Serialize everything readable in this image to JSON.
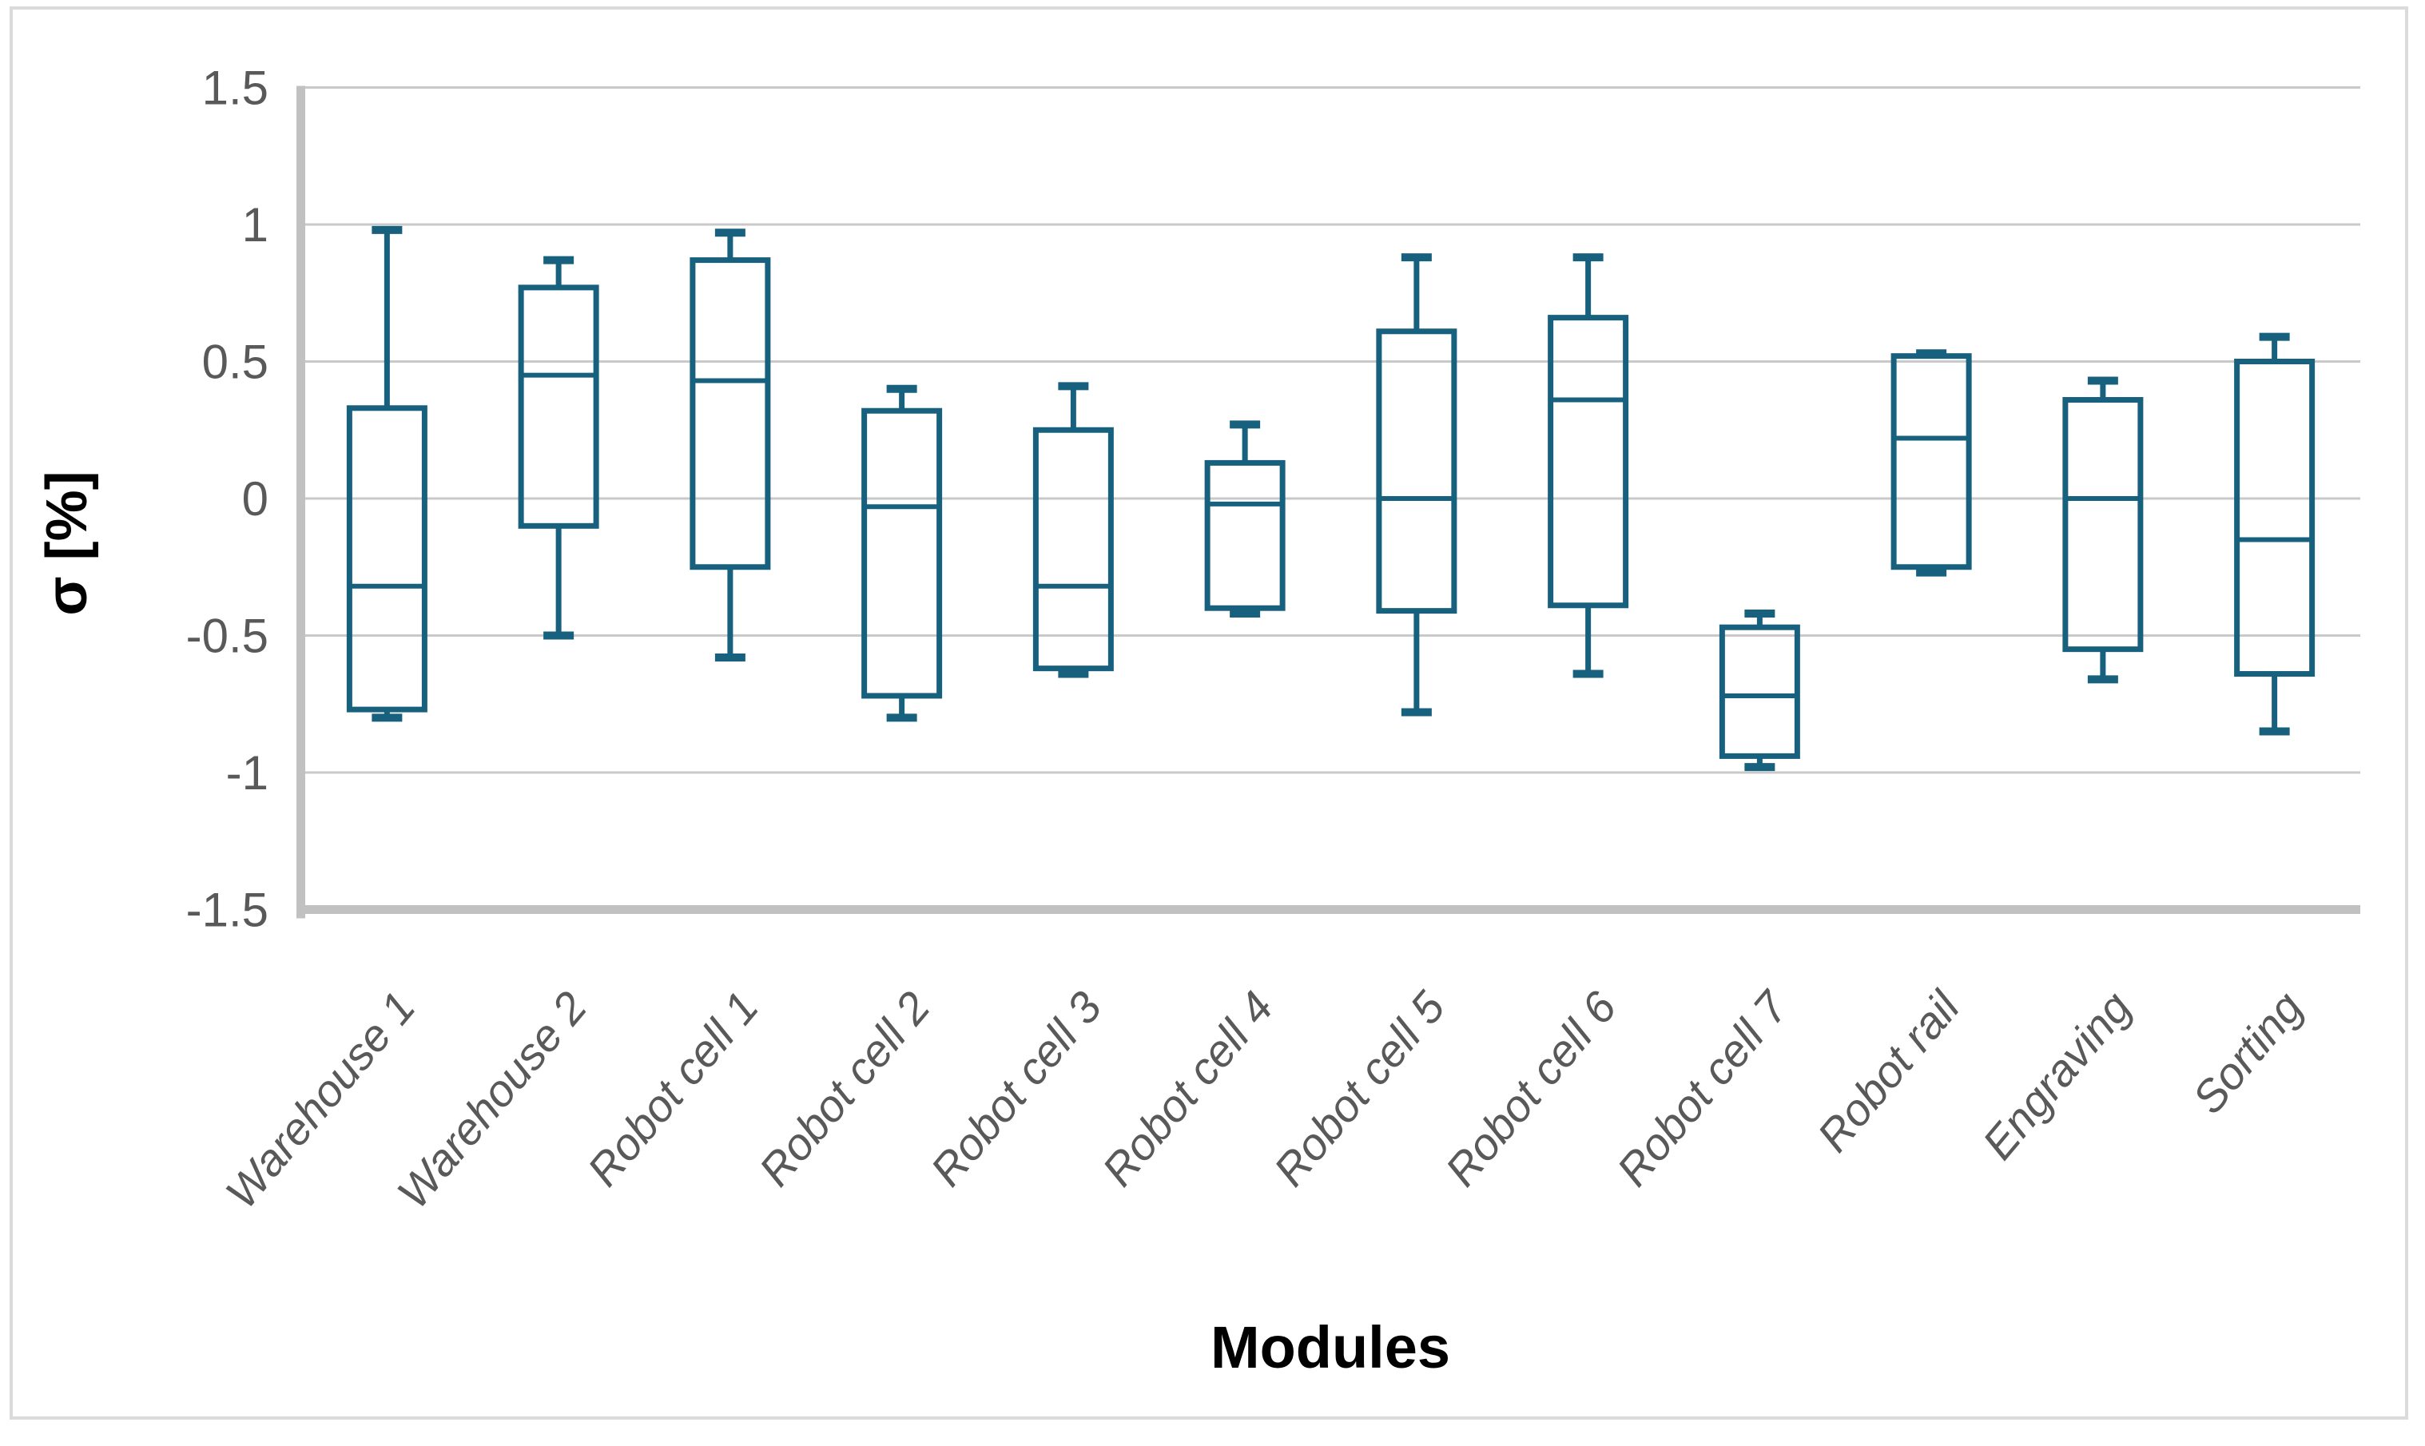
{
  "figure": {
    "background": "#ffffff"
  },
  "colors": {
    "box_stroke": "#17607E",
    "gridline": "#C9C9C9",
    "axis_band": "#C1C1C1",
    "tick_label": "#595959",
    "category_label": "#595959",
    "axis_title": "#000000",
    "figure_border": "#DBDBDB"
  },
  "chart_data": {
    "type": "boxplot",
    "title": "",
    "xlabel": "Modules",
    "ylabel": "σ [%]",
    "ylim": [
      -1.5,
      1.5
    ],
    "grid": true,
    "legend": false,
    "ytick_labels": [
      "1.5",
      "1",
      "0.5",
      "0",
      "-0.5",
      "-1",
      "-1.5"
    ],
    "ytick_values": [
      1.5,
      1,
      0.5,
      0,
      -0.5,
      -1,
      -1.5
    ],
    "categories": [
      "Warehouse 1",
      "Warehouse 2",
      "Robot cell 1",
      "Robot cell 2",
      "Robot cell 3",
      "Robot cell 4",
      "Robot cell 5",
      "Robot cell 6",
      "Robot cell 7",
      "Robot rail",
      "Engraving",
      "Sorting"
    ],
    "series": [
      {
        "name": "Warehouse 1",
        "whisker_low": -0.8,
        "q1": -0.77,
        "median": -0.32,
        "q3": 0.33,
        "whisker_high": 0.98
      },
      {
        "name": "Warehouse 2",
        "whisker_low": -0.5,
        "q1": -0.1,
        "median": 0.45,
        "q3": 0.77,
        "whisker_high": 0.87
      },
      {
        "name": "Robot cell 1",
        "whisker_low": -0.58,
        "q1": -0.25,
        "median": 0.43,
        "q3": 0.87,
        "whisker_high": 0.97
      },
      {
        "name": "Robot cell 2",
        "whisker_low": -0.8,
        "q1": -0.72,
        "median": -0.03,
        "q3": 0.32,
        "whisker_high": 0.4
      },
      {
        "name": "Robot cell 3",
        "whisker_low": -0.64,
        "q1": -0.62,
        "median": -0.32,
        "q3": 0.25,
        "whisker_high": 0.41
      },
      {
        "name": "Robot cell 4",
        "whisker_low": -0.42,
        "q1": -0.4,
        "median": -0.02,
        "q3": 0.13,
        "whisker_high": 0.27
      },
      {
        "name": "Robot cell 5",
        "whisker_low": -0.78,
        "q1": -0.41,
        "median": 0.0,
        "q3": 0.61,
        "whisker_high": 0.88
      },
      {
        "name": "Robot cell 6",
        "whisker_low": -0.64,
        "q1": -0.39,
        "median": 0.36,
        "q3": 0.66,
        "whisker_high": 0.88
      },
      {
        "name": "Robot cell 7",
        "whisker_low": -0.98,
        "q1": -0.94,
        "median": -0.72,
        "q3": -0.47,
        "whisker_high": -0.42
      },
      {
        "name": "Robot rail",
        "whisker_low": -0.27,
        "q1": -0.25,
        "median": 0.22,
        "q3": 0.52,
        "whisker_high": 0.53
      },
      {
        "name": "Engraving",
        "whisker_low": -0.66,
        "q1": -0.55,
        "median": 0.0,
        "q3": 0.36,
        "whisker_high": 0.43
      },
      {
        "name": "Sorting",
        "whisker_low": -0.85,
        "q1": -0.64,
        "median": -0.15,
        "q3": 0.5,
        "whisker_high": 0.59
      }
    ]
  }
}
